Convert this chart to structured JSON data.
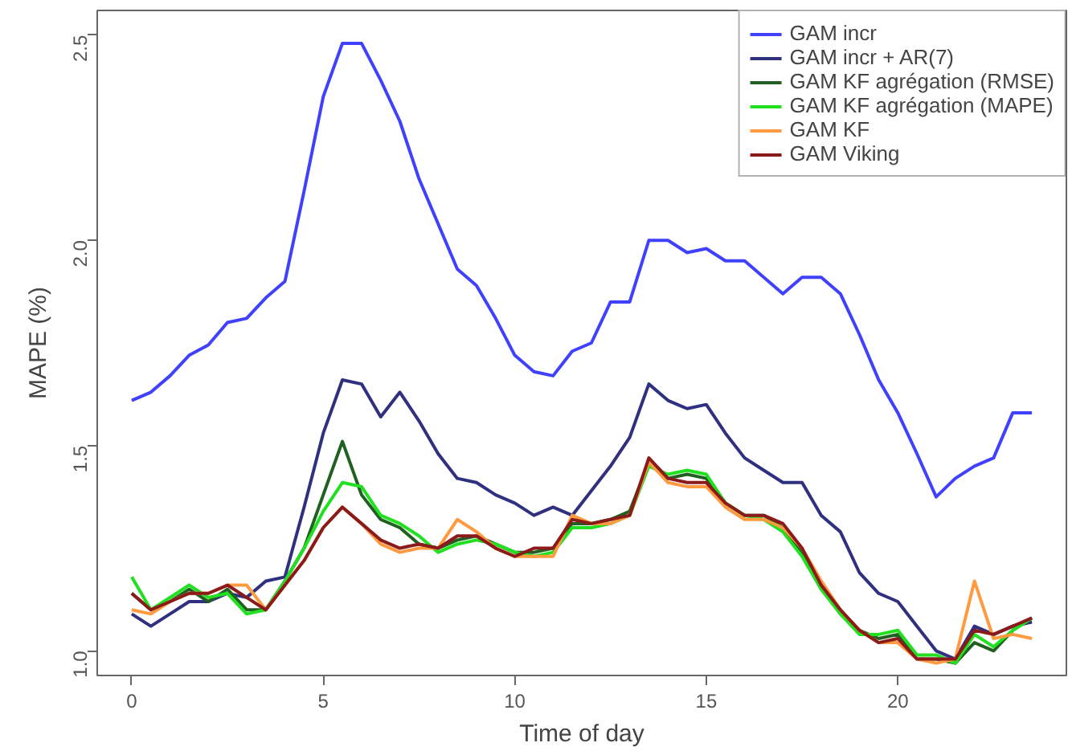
{
  "chart_data": {
    "type": "line",
    "xlabel": "Time of day",
    "ylabel": "MAPE (%)",
    "x": [
      0,
      0.5,
      1,
      1.5,
      2,
      2.5,
      3,
      3.5,
      4,
      4.5,
      5,
      5.5,
      6,
      6.5,
      7,
      7.5,
      8,
      8.5,
      9,
      9.5,
      10,
      10.5,
      11,
      11.5,
      12,
      12.5,
      13,
      13.5,
      14,
      14.5,
      15,
      15.5,
      16,
      16.5,
      17,
      17.5,
      18,
      18.5,
      19,
      19.5,
      20,
      20.5,
      21,
      21.5,
      22,
      22.5,
      23,
      23.5
    ],
    "xlim": [
      -0.9,
      24.4
    ],
    "ylim": [
      0.94,
      2.56
    ],
    "xticks": [
      0,
      5,
      10,
      15,
      20
    ],
    "yticks": [
      {
        "value": 1.0,
        "label": "1.0"
      },
      1.5,
      {
        "value": 2.0,
        "label": "2.0"
      },
      2.5
    ],
    "grid": false,
    "legend": "top right",
    "line_style": "solid",
    "marker": "none",
    "series": [
      {
        "name": "GAM incr",
        "color": "#4040ff",
        "values": [
          1.61,
          1.63,
          1.67,
          1.72,
          1.745,
          1.8,
          1.81,
          1.86,
          1.9,
          2.12,
          2.35,
          2.48,
          2.48,
          2.39,
          2.29,
          2.15,
          2.04,
          1.93,
          1.89,
          1.81,
          1.72,
          1.68,
          1.67,
          1.73,
          1.75,
          1.85,
          1.85,
          2.0,
          2.0,
          1.97,
          1.98,
          1.95,
          1.95,
          1.91,
          1.87,
          1.91,
          1.91,
          1.87,
          1.77,
          1.66,
          1.58,
          1.48,
          1.375,
          1.42,
          1.45,
          1.47,
          1.58,
          1.58
        ]
      },
      {
        "name": "GAM incr + AR(7)",
        "color": "#303080",
        "values": [
          1.09,
          1.06,
          1.09,
          1.12,
          1.12,
          1.14,
          1.13,
          1.17,
          1.18,
          1.35,
          1.53,
          1.66,
          1.65,
          1.57,
          1.63,
          1.56,
          1.48,
          1.42,
          1.41,
          1.38,
          1.36,
          1.33,
          1.35,
          1.33,
          1.39,
          1.45,
          1.52,
          1.65,
          1.61,
          1.59,
          1.6,
          1.53,
          1.47,
          1.44,
          1.41,
          1.41,
          1.33,
          1.29,
          1.19,
          1.14,
          1.12,
          1.06,
          1.0,
          0.98,
          1.06,
          1.04,
          1.06,
          1.07
        ]
      },
      {
        "name": "GAM KF agrégation (RMSE)",
        "color": "#206020",
        "values": [
          1.14,
          1.1,
          1.12,
          1.15,
          1.12,
          1.15,
          1.1,
          1.1,
          1.17,
          1.25,
          1.38,
          1.51,
          1.38,
          1.32,
          1.3,
          1.26,
          1.25,
          1.27,
          1.28,
          1.26,
          1.24,
          1.24,
          1.25,
          1.31,
          1.31,
          1.32,
          1.34,
          1.46,
          1.42,
          1.43,
          1.42,
          1.36,
          1.33,
          1.33,
          1.3,
          1.24,
          1.16,
          1.09,
          1.05,
          1.03,
          1.04,
          0.98,
          0.98,
          0.97,
          1.02,
          1.0,
          1.05,
          1.08
        ]
      },
      {
        "name": "GAM KF agrégation (MAPE)",
        "color": "#20e020",
        "values": [
          1.18,
          1.1,
          1.13,
          1.16,
          1.13,
          1.14,
          1.09,
          1.1,
          1.17,
          1.25,
          1.34,
          1.41,
          1.4,
          1.33,
          1.31,
          1.28,
          1.24,
          1.26,
          1.27,
          1.26,
          1.24,
          1.23,
          1.24,
          1.3,
          1.3,
          1.31,
          1.33,
          1.45,
          1.43,
          1.44,
          1.43,
          1.36,
          1.33,
          1.32,
          1.29,
          1.23,
          1.15,
          1.09,
          1.04,
          1.04,
          1.05,
          0.99,
          0.99,
          0.97,
          1.04,
          1.01,
          1.05,
          1.08
        ]
      },
      {
        "name": "GAM KF",
        "color": "#ff9a40",
        "values": [
          1.1,
          1.09,
          1.12,
          1.14,
          1.14,
          1.16,
          1.16,
          1.1,
          1.16,
          1.22,
          1.3,
          1.35,
          1.31,
          1.26,
          1.24,
          1.25,
          1.25,
          1.32,
          1.29,
          1.25,
          1.23,
          1.23,
          1.23,
          1.33,
          1.31,
          1.31,
          1.33,
          1.46,
          1.41,
          1.4,
          1.4,
          1.35,
          1.32,
          1.32,
          1.3,
          1.25,
          1.17,
          1.1,
          1.05,
          1.02,
          1.02,
          0.98,
          0.97,
          0.98,
          1.17,
          1.03,
          1.04,
          1.03
        ]
      },
      {
        "name": "GAM Viking",
        "color": "#8b1a1a",
        "values": [
          1.14,
          1.1,
          1.12,
          1.14,
          1.14,
          1.16,
          1.13,
          1.1,
          1.16,
          1.22,
          1.3,
          1.35,
          1.31,
          1.27,
          1.25,
          1.26,
          1.25,
          1.28,
          1.28,
          1.25,
          1.23,
          1.25,
          1.25,
          1.32,
          1.31,
          1.32,
          1.33,
          1.47,
          1.42,
          1.41,
          1.41,
          1.36,
          1.33,
          1.33,
          1.31,
          1.25,
          1.16,
          1.1,
          1.05,
          1.02,
          1.03,
          0.98,
          0.98,
          0.98,
          1.05,
          1.04,
          1.06,
          1.08
        ]
      }
    ]
  }
}
